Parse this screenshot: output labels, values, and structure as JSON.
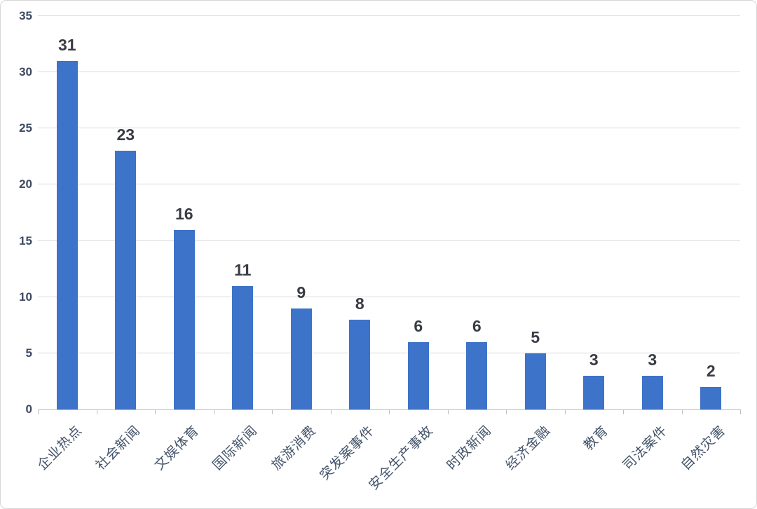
{
  "chart_data": {
    "type": "bar",
    "categories": [
      "企业热点",
      "社会新闻",
      "文娱体育",
      "国际新闻",
      "旅游消费",
      "突发案事件",
      "安全生产事故",
      "时政新闻",
      "经济金融",
      "教育",
      "司法案件",
      "自然灾害"
    ],
    "values": [
      31,
      23,
      16,
      11,
      9,
      8,
      6,
      6,
      5,
      3,
      3,
      2
    ],
    "title": "",
    "xlabel": "",
    "ylabel": "",
    "ylim": [
      0,
      35
    ],
    "yticks": [
      0,
      5,
      10,
      15,
      20,
      25,
      30,
      35
    ],
    "grid": true,
    "legend_position": "none",
    "data_labels": true,
    "colors": {
      "bar": "#3d73c8",
      "gridline": "#d9d9d9",
      "axis_line": "#bfbfbf",
      "value_label": "#393c44",
      "y_tick_label": "#3e4a63",
      "category_label": "#44546a",
      "background": "#ffffff"
    }
  }
}
